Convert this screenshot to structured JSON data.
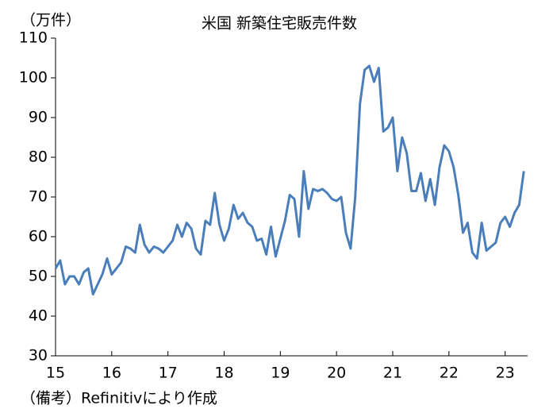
{
  "chart_data": {
    "type": "line",
    "title": "米国 新築住宅販売件数",
    "unit_label": "（万件）",
    "note": "（備考）Refinitivにより作成",
    "xlim": [
      15,
      23.4
    ],
    "xticks": [
      15,
      16,
      17,
      18,
      19,
      20,
      21,
      22,
      23
    ],
    "ylim": [
      30,
      110
    ],
    "yticks": [
      30,
      40,
      50,
      60,
      70,
      80,
      90,
      100,
      110
    ],
    "x": [
      15,
      15.083,
      15.167,
      15.25,
      15.333,
      15.417,
      15.5,
      15.583,
      15.667,
      15.75,
      15.833,
      15.917,
      16,
      16.083,
      16.167,
      16.25,
      16.333,
      16.417,
      16.5,
      16.583,
      16.667,
      16.75,
      16.833,
      16.917,
      17,
      17.083,
      17.167,
      17.25,
      17.333,
      17.417,
      17.5,
      17.583,
      17.667,
      17.75,
      17.833,
      17.917,
      18,
      18.083,
      18.167,
      18.25,
      18.333,
      18.417,
      18.5,
      18.583,
      18.667,
      18.75,
      18.833,
      18.917,
      19,
      19.083,
      19.167,
      19.25,
      19.333,
      19.417,
      19.5,
      19.583,
      19.667,
      19.75,
      19.833,
      19.917,
      20,
      20.083,
      20.167,
      20.25,
      20.333,
      20.417,
      20.5,
      20.583,
      20.667,
      20.75,
      20.833,
      20.917,
      21,
      21.083,
      21.167,
      21.25,
      21.333,
      21.417,
      21.5,
      21.583,
      21.667,
      21.75,
      21.833,
      21.917,
      22,
      22.083,
      22.167,
      22.25,
      22.333,
      22.417,
      22.5,
      22.583,
      22.667,
      22.75,
      22.833,
      22.917,
      23,
      23.083,
      23.167,
      23.25,
      23.333
    ],
    "series": [
      {
        "color": "#4a7ebb",
        "values": [
          52,
          54,
          48,
          50,
          50,
          48,
          51,
          52,
          45.5,
          48,
          50.5,
          54.5,
          50.5,
          52,
          53.5,
          57.5,
          57,
          56,
          63,
          58,
          56,
          57.5,
          57,
          56,
          57.5,
          59,
          63,
          60,
          63.5,
          62,
          57,
          55.5,
          64,
          63,
          71,
          63,
          59,
          62,
          68,
          64.5,
          66,
          63.5,
          62.5,
          59,
          59.5,
          55.5,
          62.5,
          55,
          59.5,
          64,
          70.5,
          69.5,
          60,
          76.5,
          67,
          72,
          71.5,
          72,
          71,
          69.5,
          69,
          70,
          61,
          57,
          70,
          93.5,
          102,
          103,
          99,
          102.5,
          86.5,
          87.5,
          90,
          76.5,
          85,
          81,
          71.5,
          71.5,
          76,
          69,
          74.5,
          68,
          77.5,
          83,
          81.5,
          77.5,
          70.5,
          61,
          63.5,
          56,
          54.5,
          63.5,
          56.5,
          57.5,
          58.5,
          63.5,
          65,
          62.5,
          66,
          68,
          76.5
        ]
      }
    ]
  }
}
